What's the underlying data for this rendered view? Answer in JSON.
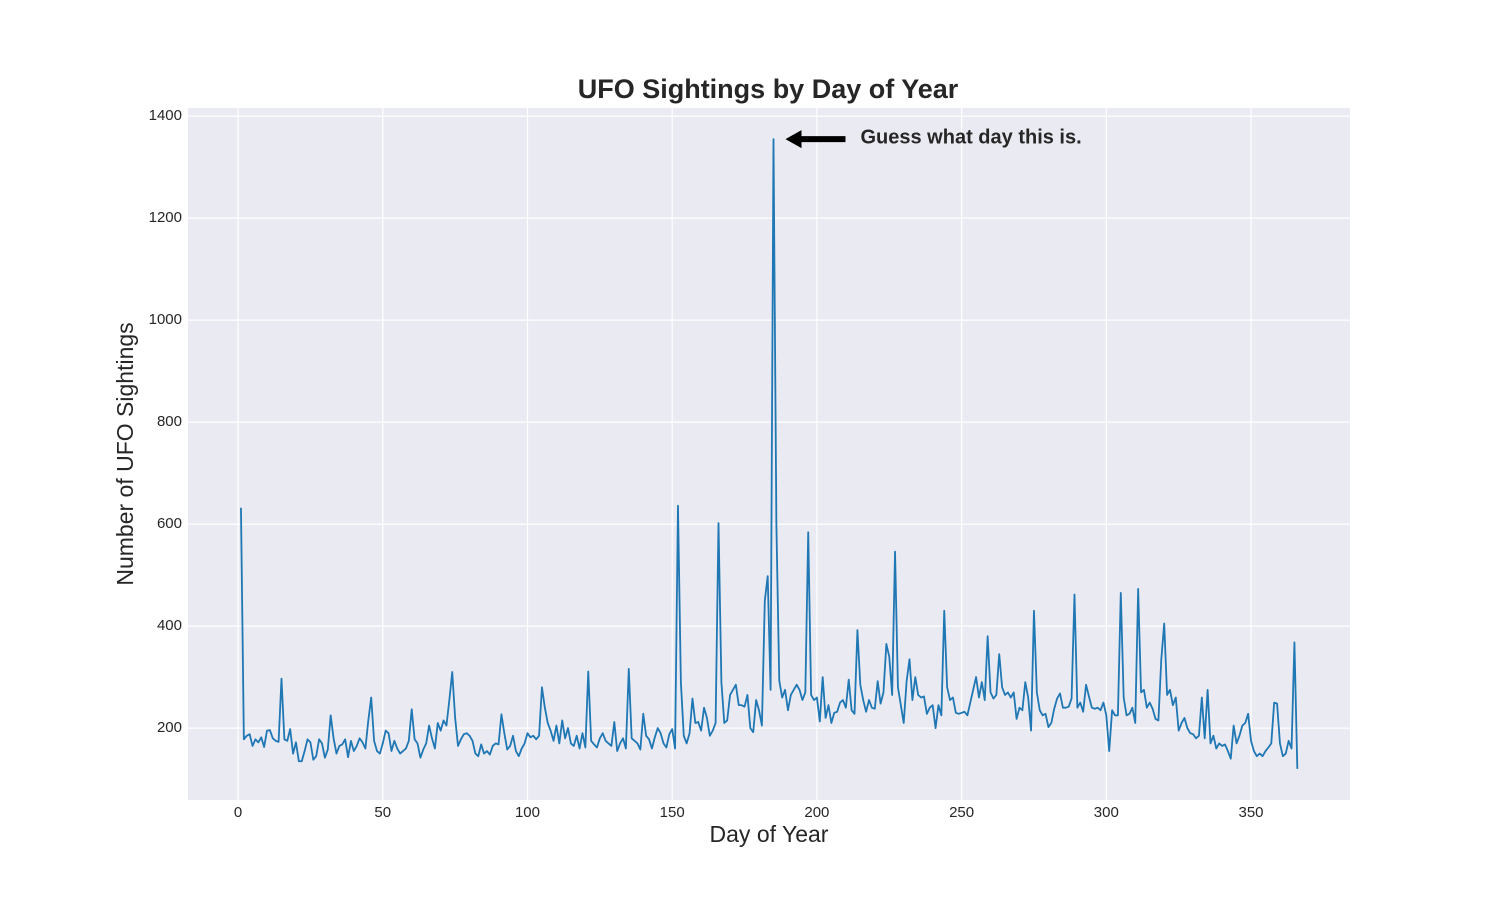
{
  "chart_data": {
    "type": "line",
    "title": "UFO Sightings by Day of Year",
    "xlabel": "Day of Year",
    "ylabel": "Number of UFO Sightings",
    "annotation": {
      "text": "Guess what day this is.",
      "x": 185,
      "y": 1355
    },
    "color": "#1f77b4",
    "grid": true,
    "xlim": [
      -17.3,
      384.2
    ],
    "ylim": [
      59,
      1416
    ],
    "xticks": [
      0,
      50,
      100,
      150,
      200,
      250,
      300,
      350
    ],
    "yticks": [
      200,
      400,
      600,
      800,
      1000,
      1200,
      1400
    ],
    "x": [
      1,
      2,
      3,
      4,
      5,
      6,
      7,
      8,
      9,
      10,
      11,
      12,
      13,
      14,
      15,
      16,
      17,
      18,
      19,
      20,
      21,
      22,
      23,
      24,
      25,
      26,
      27,
      28,
      29,
      30,
      31,
      32,
      33,
      34,
      35,
      36,
      37,
      38,
      39,
      40,
      41,
      42,
      43,
      44,
      45,
      46,
      47,
      48,
      49,
      50,
      51,
      52,
      53,
      54,
      55,
      56,
      57,
      58,
      59,
      60,
      61,
      62,
      63,
      64,
      65,
      66,
      67,
      68,
      69,
      70,
      71,
      72,
      73,
      74,
      75,
      76,
      77,
      78,
      79,
      80,
      81,
      82,
      83,
      84,
      85,
      86,
      87,
      88,
      89,
      90,
      91,
      92,
      93,
      94,
      95,
      96,
      97,
      98,
      99,
      100,
      101,
      102,
      103,
      104,
      105,
      106,
      107,
      108,
      109,
      110,
      111,
      112,
      113,
      114,
      115,
      116,
      117,
      118,
      119,
      120,
      121,
      122,
      123,
      124,
      125,
      126,
      127,
      128,
      129,
      130,
      131,
      132,
      133,
      134,
      135,
      136,
      137,
      138,
      139,
      140,
      141,
      142,
      143,
      144,
      145,
      146,
      147,
      148,
      149,
      150,
      151,
      152,
      153,
      154,
      155,
      156,
      157,
      158,
      159,
      160,
      161,
      162,
      163,
      164,
      165,
      166,
      167,
      168,
      169,
      170,
      171,
      172,
      173,
      174,
      175,
      176,
      177,
      178,
      179,
      180,
      181,
      182,
      183,
      184,
      185,
      186,
      187,
      188,
      189,
      190,
      191,
      192,
      193,
      194,
      195,
      196,
      197,
      198,
      199,
      200,
      201,
      202,
      203,
      204,
      205,
      206,
      207,
      208,
      209,
      210,
      211,
      212,
      213,
      214,
      215,
      216,
      217,
      218,
      219,
      220,
      221,
      222,
      223,
      224,
      225,
      226,
      227,
      228,
      229,
      230,
      231,
      232,
      233,
      234,
      235,
      236,
      237,
      238,
      239,
      240,
      241,
      242,
      243,
      244,
      245,
      246,
      247,
      248,
      249,
      250,
      251,
      252,
      253,
      254,
      255,
      256,
      257,
      258,
      259,
      260,
      261,
      262,
      263,
      264,
      265,
      266,
      267,
      268,
      269,
      270,
      271,
      272,
      273,
      274,
      275,
      276,
      277,
      278,
      279,
      280,
      281,
      282,
      283,
      284,
      285,
      286,
      287,
      288,
      289,
      290,
      291,
      292,
      293,
      294,
      295,
      296,
      297,
      298,
      299,
      300,
      301,
      302,
      303,
      304,
      305,
      306,
      307,
      308,
      309,
      310,
      311,
      312,
      313,
      314,
      315,
      316,
      317,
      318,
      319,
      320,
      321,
      322,
      323,
      324,
      325,
      326,
      327,
      328,
      329,
      330,
      331,
      332,
      333,
      334,
      335,
      336,
      337,
      338,
      339,
      340,
      341,
      342,
      343,
      344,
      345,
      346,
      347,
      348,
      349,
      350,
      351,
      352,
      353,
      354,
      355,
      356,
      357,
      358,
      359,
      360,
      361,
      362,
      363,
      364,
      365,
      366
    ],
    "values": [
      632,
      178,
      185,
      188,
      165,
      178,
      172,
      182,
      163,
      195,
      196,
      180,
      175,
      173,
      297,
      178,
      175,
      198,
      150,
      172,
      135,
      135,
      155,
      178,
      172,
      138,
      145,
      178,
      170,
      142,
      158,
      225,
      180,
      150,
      165,
      168,
      178,
      143,
      175,
      155,
      165,
      180,
      172,
      160,
      215,
      260,
      175,
      155,
      150,
      170,
      195,
      190,
      155,
      175,
      160,
      150,
      155,
      160,
      175,
      237,
      178,
      170,
      142,
      158,
      170,
      205,
      180,
      160,
      210,
      195,
      215,
      205,
      255,
      310,
      220,
      165,
      178,
      188,
      190,
      185,
      175,
      150,
      145,
      168,
      150,
      155,
      148,
      165,
      170,
      168,
      227,
      190,
      158,
      165,
      185,
      155,
      145,
      160,
      170,
      190,
      182,
      185,
      178,
      185,
      280,
      240,
      210,
      195,
      175,
      205,
      170,
      215,
      180,
      200,
      170,
      165,
      185,
      160,
      190,
      162,
      311,
      175,
      168,
      162,
      180,
      190,
      175,
      170,
      165,
      212,
      155,
      170,
      180,
      160,
      316,
      180,
      175,
      170,
      158,
      228,
      185,
      178,
      160,
      182,
      200,
      190,
      170,
      162,
      188,
      198,
      160,
      636,
      290,
      185,
      170,
      190,
      258,
      210,
      212,
      195,
      240,
      220,
      185,
      195,
      210,
      602,
      290,
      210,
      215,
      265,
      275,
      285,
      245,
      245,
      242,
      265,
      200,
      192,
      255,
      235,
      205,
      450,
      498,
      275,
      1355,
      600,
      293,
      260,
      275,
      235,
      265,
      275,
      285,
      275,
      255,
      270,
      584,
      265,
      255,
      260,
      213,
      300,
      220,
      245,
      210,
      230,
      232,
      250,
      255,
      240,
      295,
      235,
      228,
      392,
      285,
      255,
      232,
      255,
      240,
      238,
      292,
      248,
      270,
      365,
      340,
      265,
      546,
      280,
      245,
      210,
      292,
      335,
      255,
      300,
      265,
      260,
      262,
      228,
      240,
      245,
      200,
      245,
      225,
      430,
      280,
      255,
      260,
      230,
      228,
      230,
      232,
      225,
      250,
      275,
      300,
      260,
      290,
      255,
      380,
      270,
      258,
      265,
      345,
      280,
      265,
      270,
      260,
      270,
      218,
      240,
      235,
      290,
      260,
      195,
      430,
      270,
      235,
      225,
      228,
      202,
      210,
      238,
      258,
      268,
      240,
      240,
      242,
      258,
      462,
      240,
      250,
      232,
      285,
      262,
      240,
      238,
      240,
      235,
      250,
      225,
      155,
      235,
      225,
      225,
      465,
      260,
      225,
      228,
      240,
      210,
      473,
      270,
      275,
      240,
      250,
      238,
      218,
      215,
      335,
      405,
      265,
      275,
      245,
      260,
      195,
      210,
      220,
      200,
      190,
      188,
      180,
      185,
      260,
      180,
      275,
      170,
      185,
      160,
      170,
      165,
      168,
      155,
      140,
      205,
      170,
      185,
      205,
      210,
      228,
      175,
      155,
      145,
      150,
      145,
      155,
      162,
      170,
      250,
      248,
      170,
      145,
      150,
      175,
      160,
      368,
      120
    ]
  }
}
